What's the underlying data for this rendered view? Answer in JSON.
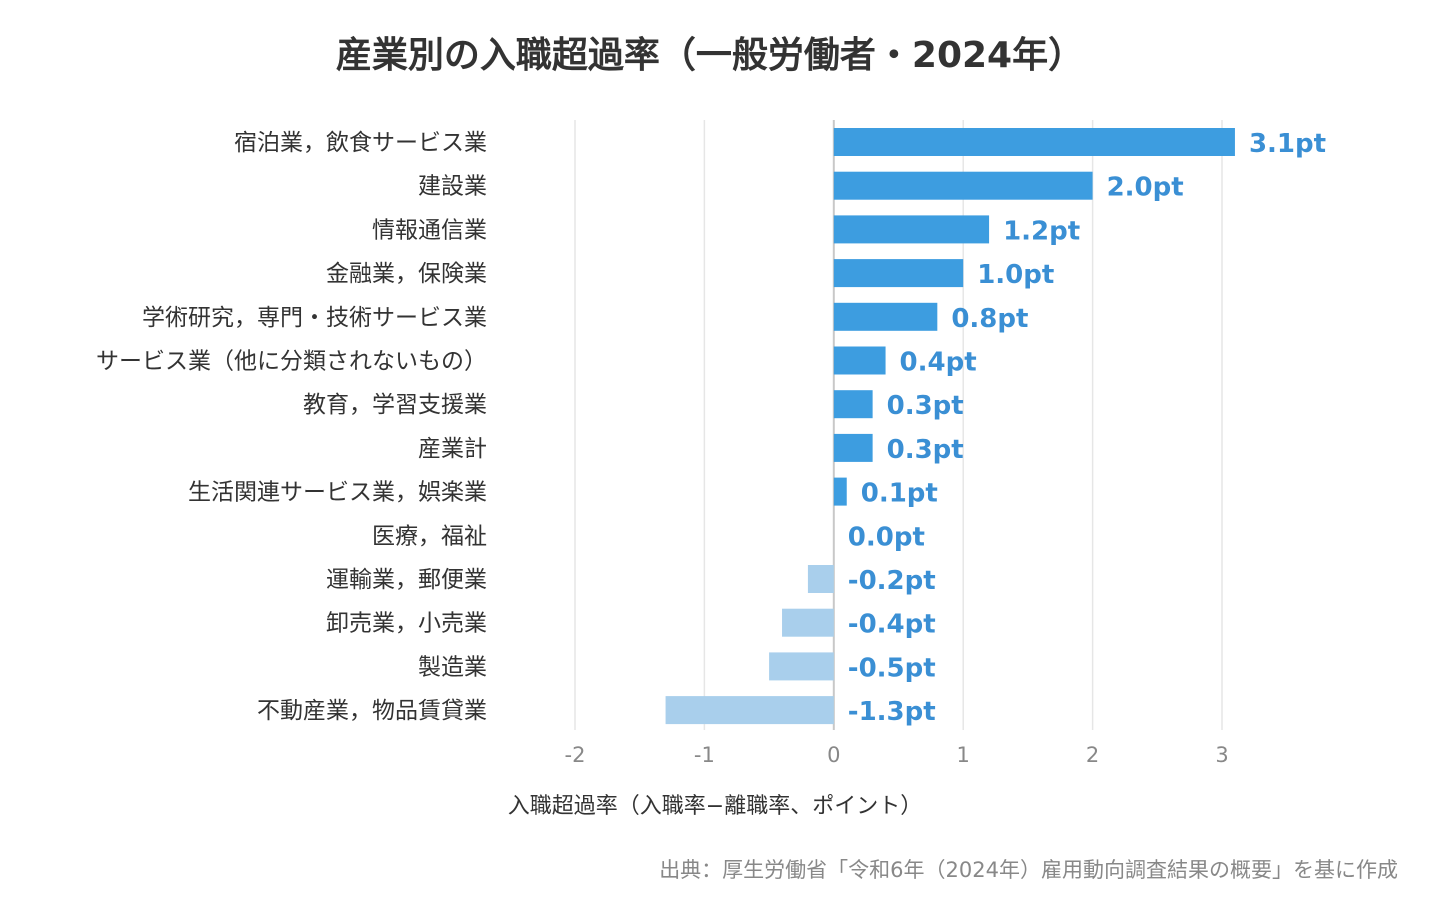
{
  "chart_data": {
    "type": "bar",
    "orientation": "horizontal",
    "title": "産業別の入職超過率（一般労働者・2024年）",
    "xlabel": "入職超過率（入職率−離職率、ポイント）",
    "source": "出典：厚生労働省「令和6年（2024年）雇用動向調査結果の概要」を基に作成",
    "xlim": [
      -2,
      3
    ],
    "xticks": [
      "-2",
      "-1",
      "0",
      "1",
      "2",
      "3"
    ],
    "grid": true,
    "colors": {
      "positive": "#3d9de0",
      "negative": "#a9cfec",
      "label": "#3a8fd4",
      "grid": "#e6e6e6"
    },
    "categories": [
      "宿泊業，飲食サービス業",
      "建設業",
      "情報通信業",
      "金融業，保険業",
      "学術研究，専門・技術サービス業",
      "サービス業（他に分類されないもの）",
      "教育，学習支援業",
      "産業計",
      "生活関連サービス業，娯楽業",
      "医療，福祉",
      "運輸業，郵便業",
      "卸売業，小売業",
      "製造業",
      "不動産業，物品賃貸業"
    ],
    "values": [
      3.1,
      2.0,
      1.2,
      1.0,
      0.8,
      0.4,
      0.3,
      0.3,
      0.1,
      0.0,
      -0.2,
      -0.4,
      -0.5,
      -1.3
    ],
    "value_labels": [
      "3.1pt",
      "2.0pt",
      "1.2pt",
      "1.0pt",
      "0.8pt",
      "0.4pt",
      "0.3pt",
      "0.3pt",
      "0.1pt",
      "0.0pt",
      "-0.2pt",
      "-0.4pt",
      "-0.5pt",
      "-1.3pt"
    ]
  }
}
